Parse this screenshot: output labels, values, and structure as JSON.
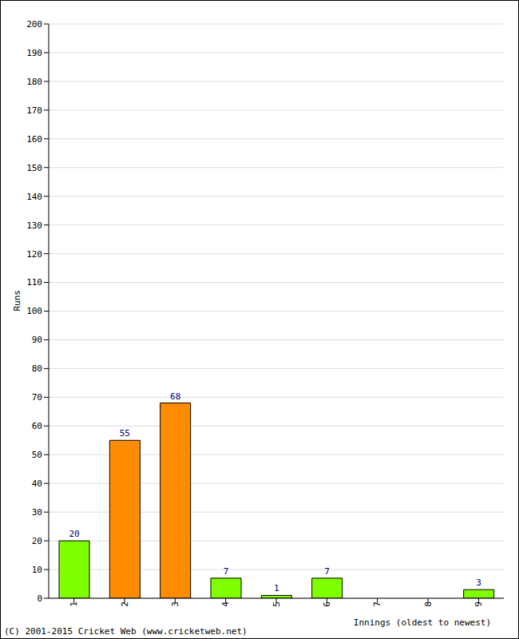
{
  "chart_data": {
    "type": "bar",
    "categories": [
      "1",
      "2",
      "3",
      "4",
      "5",
      "6",
      "7",
      "8",
      "9"
    ],
    "values": [
      20,
      55,
      68,
      7,
      1,
      7,
      0,
      0,
      3
    ],
    "colors": [
      "#80ff00",
      "#ff8c00",
      "#ff8c00",
      "#80ff00",
      "#80ff00",
      "#80ff00",
      "#80ff00",
      "#80ff00",
      "#80ff00"
    ],
    "ylim": [
      0,
      200
    ],
    "yticks": [
      0,
      10,
      20,
      30,
      40,
      50,
      60,
      70,
      80,
      90,
      100,
      110,
      120,
      130,
      140,
      150,
      160,
      170,
      180,
      190,
      200
    ],
    "grid": true,
    "data_labels": true,
    "y_label": "Runs",
    "x_label": "Innings (oldest to newest)",
    "annotations": [
      "(C) 2001-2015 Cricket Web (www.cricketweb.net)"
    ]
  }
}
